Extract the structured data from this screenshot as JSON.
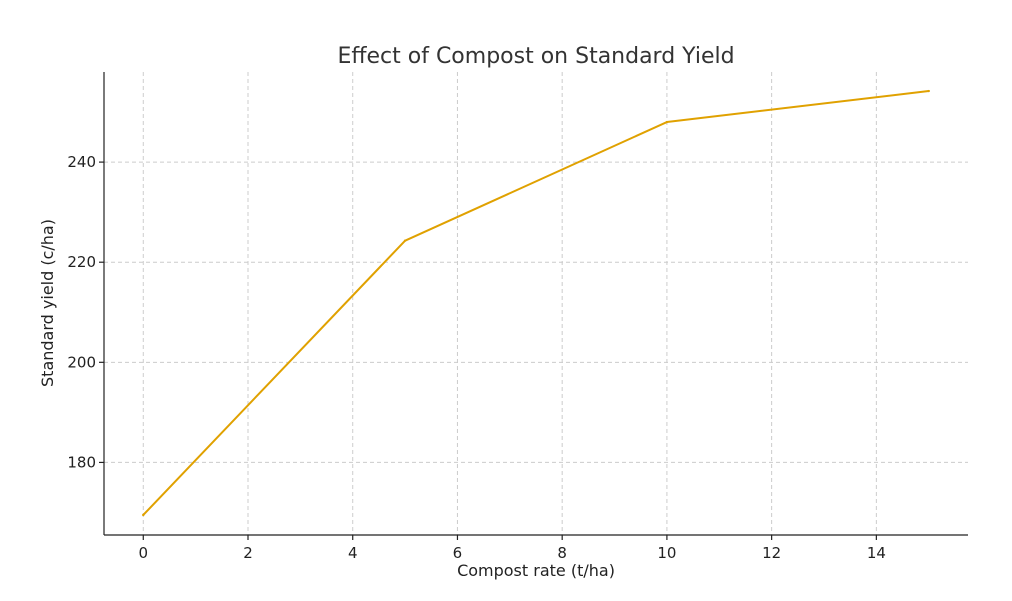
{
  "chart_data": {
    "type": "line",
    "title": "Effect of Compost on Standard Yield",
    "xlabel": "Compost rate (t/ha)",
    "ylabel": "Standard yield (c/ha)",
    "xlim": [
      -0.75,
      15.75
    ],
    "ylim": [
      165.5,
      258
    ],
    "xticks": [
      0,
      2,
      4,
      6,
      8,
      10,
      12,
      14
    ],
    "yticks": [
      180,
      200,
      220,
      240
    ],
    "grid": true,
    "series": [
      {
        "name": "Standard yield",
        "color": "#e0a100",
        "x": [
          0,
          5,
          10,
          15
        ],
        "y": [
          169.5,
          224.3,
          248.0,
          254.2
        ]
      }
    ]
  }
}
